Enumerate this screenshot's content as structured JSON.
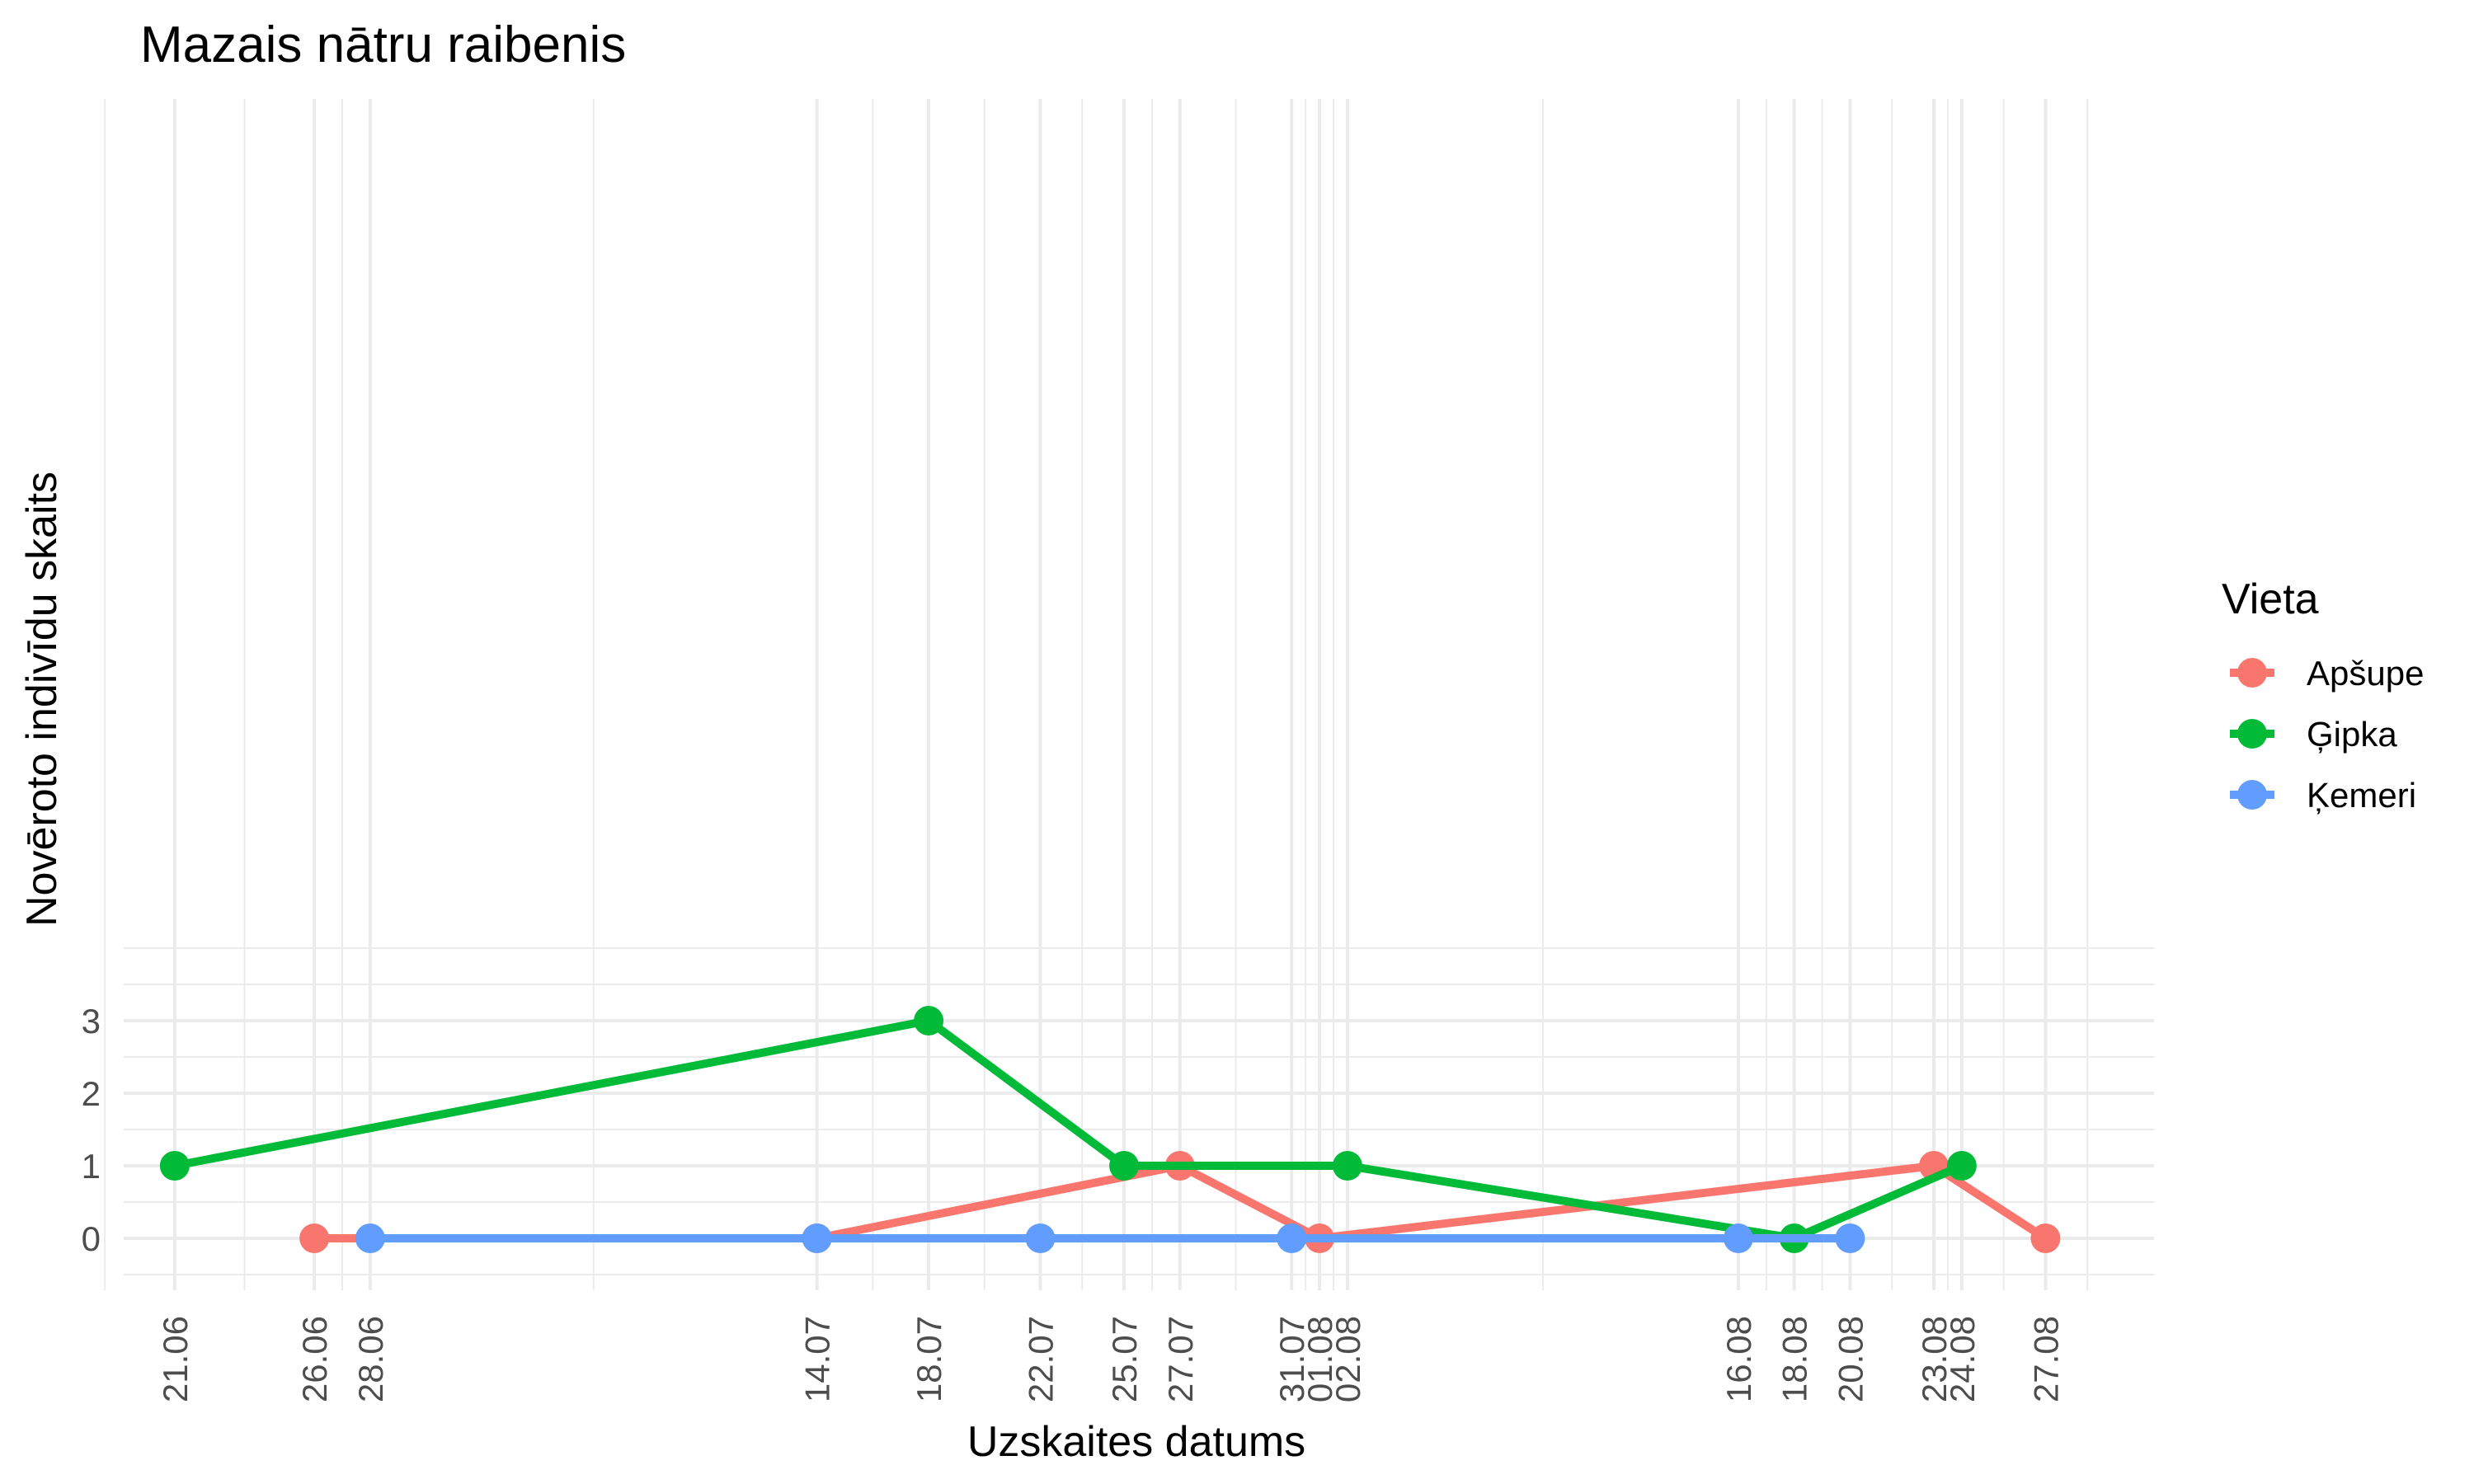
{
  "chart_data": {
    "type": "line",
    "title": "Mazais nātru raibenis",
    "xlabel": "Uzskaites datums",
    "ylabel": "Novēroto indivīdu skaits",
    "x_tick_labels": [
      "21.06",
      "26.06",
      "28.06",
      "14.07",
      "18.07",
      "22.07",
      "25.07",
      "27.07",
      "31.07",
      "01.08",
      "02.08",
      "16.08",
      "18.08",
      "20.08",
      "23.08",
      "24.08",
      "27.08"
    ],
    "y_ticks": [
      0,
      1,
      2,
      3
    ],
    "ylim": [
      -0.5,
      4.0
    ],
    "grid": true,
    "legend": {
      "title": "Vieta",
      "position": "right"
    },
    "series": [
      {
        "name": "Apšupe",
        "color": "#F8766D",
        "points": [
          {
            "x": "26.06",
            "y": 0
          },
          {
            "x": "14.07",
            "y": 0
          },
          {
            "x": "27.07",
            "y": 1
          },
          {
            "x": "01.08",
            "y": 0
          },
          {
            "x": "23.08",
            "y": 1
          },
          {
            "x": "27.08",
            "y": 0
          }
        ]
      },
      {
        "name": "Ģipka",
        "color": "#00BA38",
        "points": [
          {
            "x": "21.06",
            "y": 1
          },
          {
            "x": "18.07",
            "y": 3
          },
          {
            "x": "25.07",
            "y": 1
          },
          {
            "x": "02.08",
            "y": 1
          },
          {
            "x": "18.08",
            "y": 0
          },
          {
            "x": "24.08",
            "y": 1
          }
        ]
      },
      {
        "name": "Ķemeri",
        "color": "#619CFF",
        "points": [
          {
            "x": "28.06",
            "y": 0
          },
          {
            "x": "14.07",
            "y": 0
          },
          {
            "x": "22.07",
            "y": 0
          },
          {
            "x": "31.07",
            "y": 0
          },
          {
            "x": "16.08",
            "y": 0
          },
          {
            "x": "20.08",
            "y": 0
          }
        ]
      }
    ]
  }
}
